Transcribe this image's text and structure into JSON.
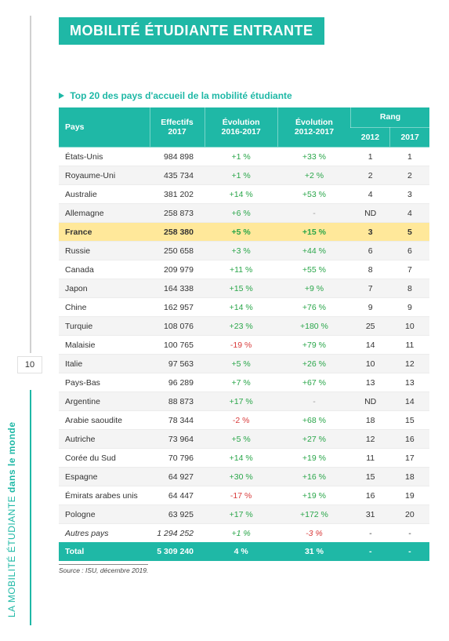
{
  "page_number": "10",
  "sidebar_label": {
    "prefix": "LA MOBILITÉ ÉTUDIANTE ",
    "bold": "dans le monde"
  },
  "title": "MOBILITÉ ÉTUDIANTE ENTRANTE",
  "subtitle": "Top 20 des pays d'accueil de la mobilité étudiante",
  "columns": {
    "pays": "Pays",
    "effectifs": "Effectifs\n2017",
    "evo1": "Évolution\n2016-2017",
    "evo2": "Évolution\n2012-2017",
    "rang": "Rang",
    "rang_y1": "2012",
    "rang_y2": "2017"
  },
  "rows": [
    {
      "pays": "États-Unis",
      "eff": "984 898",
      "e1": "+1 %",
      "e1_sign": "pos",
      "e2": "+33 %",
      "e2_sign": "pos",
      "r1": "1",
      "r2": "1"
    },
    {
      "pays": "Royaume-Uni",
      "eff": "435 734",
      "e1": "+1 %",
      "e1_sign": "pos",
      "e2": "+2 %",
      "e2_sign": "pos",
      "r1": "2",
      "r2": "2"
    },
    {
      "pays": "Australie",
      "eff": "381 202",
      "e1": "+14 %",
      "e1_sign": "pos",
      "e2": "+53 %",
      "e2_sign": "pos",
      "r1": "4",
      "r2": "3"
    },
    {
      "pays": "Allemagne",
      "eff": "258 873",
      "e1": "+6 %",
      "e1_sign": "pos",
      "e2": "-",
      "e2_sign": "na",
      "r1": "ND",
      "r2": "4"
    },
    {
      "pays": "France",
      "eff": "258 380",
      "e1": "+5 %",
      "e1_sign": "pos",
      "e2": "+15 %",
      "e2_sign": "pos",
      "r1": "3",
      "r2": "5",
      "highlight": true
    },
    {
      "pays": "Russie",
      "eff": "250 658",
      "e1": "+3 %",
      "e1_sign": "pos",
      "e2": "+44 %",
      "e2_sign": "pos",
      "r1": "6",
      "r2": "6"
    },
    {
      "pays": "Canada",
      "eff": "209 979",
      "e1": "+11 %",
      "e1_sign": "pos",
      "e2": "+55 %",
      "e2_sign": "pos",
      "r1": "8",
      "r2": "7"
    },
    {
      "pays": "Japon",
      "eff": "164 338",
      "e1": "+15 %",
      "e1_sign": "pos",
      "e2": "+9 %",
      "e2_sign": "pos",
      "r1": "7",
      "r2": "8"
    },
    {
      "pays": "Chine",
      "eff": "162 957",
      "e1": "+14 %",
      "e1_sign": "pos",
      "e2": "+76 %",
      "e2_sign": "pos",
      "r1": "9",
      "r2": "9"
    },
    {
      "pays": "Turquie",
      "eff": "108 076",
      "e1": "+23 %",
      "e1_sign": "pos",
      "e2": "+180 %",
      "e2_sign": "pos",
      "r1": "25",
      "r2": "10"
    },
    {
      "pays": "Malaisie",
      "eff": "100 765",
      "e1": "-19 %",
      "e1_sign": "neg",
      "e2": "+79 %",
      "e2_sign": "pos",
      "r1": "14",
      "r2": "11"
    },
    {
      "pays": "Italie",
      "eff": "97 563",
      "e1": "+5 %",
      "e1_sign": "pos",
      "e2": "+26 %",
      "e2_sign": "pos",
      "r1": "10",
      "r2": "12"
    },
    {
      "pays": "Pays-Bas",
      "eff": "96 289",
      "e1": "+7 %",
      "e1_sign": "pos",
      "e2": "+67 %",
      "e2_sign": "pos",
      "r1": "13",
      "r2": "13"
    },
    {
      "pays": "Argentine",
      "eff": "88 873",
      "e1": "+17 %",
      "e1_sign": "pos",
      "e2": "-",
      "e2_sign": "na",
      "r1": "ND",
      "r2": "14"
    },
    {
      "pays": "Arabie saoudite",
      "eff": "78 344",
      "e1": "-2 %",
      "e1_sign": "neg",
      "e2": "+68 %",
      "e2_sign": "pos",
      "r1": "18",
      "r2": "15"
    },
    {
      "pays": "Autriche",
      "eff": "73 964",
      "e1": "+5 %",
      "e1_sign": "pos",
      "e2": "+27 %",
      "e2_sign": "pos",
      "r1": "12",
      "r2": "16"
    },
    {
      "pays": "Corée du Sud",
      "eff": "70 796",
      "e1": "+14 %",
      "e1_sign": "pos",
      "e2": "+19 %",
      "e2_sign": "pos",
      "r1": "11",
      "r2": "17"
    },
    {
      "pays": "Espagne",
      "eff": "64 927",
      "e1": "+30 %",
      "e1_sign": "pos",
      "e2": "+16 %",
      "e2_sign": "pos",
      "r1": "15",
      "r2": "18"
    },
    {
      "pays": "Émirats arabes unis",
      "eff": "64 447",
      "e1": "-17 %",
      "e1_sign": "neg",
      "e2": "+19 %",
      "e2_sign": "pos",
      "r1": "16",
      "r2": "19"
    },
    {
      "pays": "Pologne",
      "eff": "63 925",
      "e1": "+17 %",
      "e1_sign": "pos",
      "e2": "+172 %",
      "e2_sign": "pos",
      "r1": "31",
      "r2": "20"
    },
    {
      "pays": "Autres pays",
      "eff": "1 294 252",
      "e1": "+1 %",
      "e1_sign": "pos",
      "e2": "-3 %",
      "e2_sign": "neg",
      "r1": "-",
      "r2": "-",
      "italic": true
    }
  ],
  "total": {
    "label": "Total",
    "eff": "5 309 240",
    "e1": "4 %",
    "e2": "31 %",
    "r1": "-",
    "r2": "-"
  },
  "source": "Source : ISU, décembre 2019.",
  "colors": {
    "accent": "#1fb8a6",
    "highlight_row": "#ffe89a",
    "pos_text": "#2aa64a",
    "neg_text": "#d83a3a",
    "alt_row": "#f4f4f4"
  }
}
